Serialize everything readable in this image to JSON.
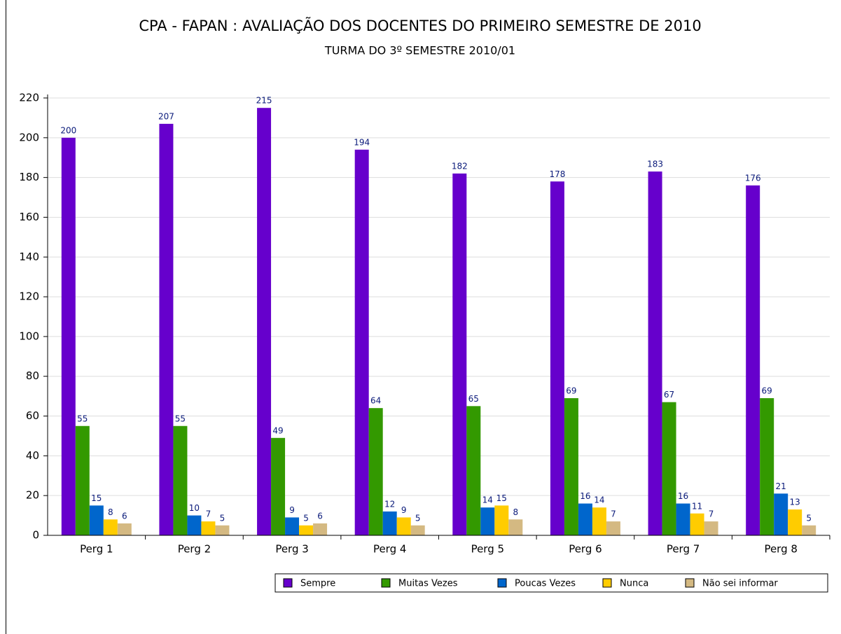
{
  "chart_data": {
    "type": "bar",
    "title": "CPA - FAPAN : AVALIAÇÃO DOS DOCENTES DO PRIMEIRO SEMESTRE DE 2010",
    "subtitle": "TURMA DO 3º SEMESTRE 2010/01",
    "categories": [
      "Perg 1",
      "Perg 2",
      "Perg 3",
      "Perg 4",
      "Perg 5",
      "Perg 6",
      "Perg 7",
      "Perg 8"
    ],
    "series": [
      {
        "name": "Sempre",
        "color": "#6600cc",
        "values": [
          200,
          207,
          215,
          194,
          182,
          178,
          183,
          176
        ]
      },
      {
        "name": "Muitas Vezes",
        "color": "#339900",
        "values": [
          55,
          55,
          49,
          64,
          65,
          69,
          67,
          69
        ]
      },
      {
        "name": "Poucas Vezes",
        "color": "#0066cc",
        "values": [
          15,
          10,
          9,
          12,
          14,
          16,
          16,
          21
        ]
      },
      {
        "name": "Nunca",
        "color": "#ffcc00",
        "values": [
          8,
          7,
          5,
          9,
          15,
          14,
          11,
          13
        ]
      },
      {
        "name": "Não sei informar",
        "color": "#d4b982",
        "values": [
          6,
          5,
          6,
          5,
          8,
          7,
          7,
          5
        ]
      }
    ],
    "ylim": [
      0,
      220
    ],
    "yticks": [
      0,
      20,
      40,
      60,
      80,
      100,
      120,
      140,
      160,
      180,
      200,
      220
    ],
    "grid": true,
    "legend": "bottom-right"
  }
}
